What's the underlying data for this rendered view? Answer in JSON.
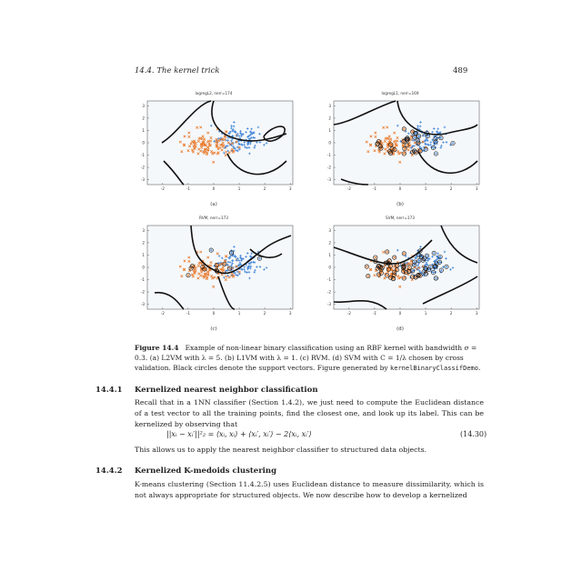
{
  "header": {
    "running_head": "14.4.  The kernel trick",
    "page_number": "489"
  },
  "figure": {
    "panels": [
      {
        "title": "logregL2, nerr=174",
        "label": "(a)"
      },
      {
        "title": "logregL1, nerr=169",
        "label": "(b)"
      },
      {
        "title": "RVM, nerr=173",
        "label": "(c)"
      },
      {
        "title": "SVM, nerr=173",
        "label": "(d)"
      }
    ],
    "x_ticks": [
      "-2",
      "-1",
      "0",
      "1",
      "2",
      "3"
    ],
    "y_ticks": [
      "3",
      "2",
      "1",
      "0",
      "-1",
      "-2",
      "-3"
    ],
    "colors": {
      "class_a": "#e8792a",
      "class_b": "#3d82d6",
      "boundary": "#111111",
      "support_vector": "#111111"
    },
    "caption_label": "Figure 14.4",
    "caption_text": "Example of non-linear binary classification using an RBF kernel with bandwidth σ = 0.3. (a) L2VM with λ = 5. (b) L1VM with λ = 1. (c) RVM. (d) SVM with C = 1/λ chosen by cross validation. Black circles denote the support vectors. Figure generated by",
    "caption_code": "kernelBinaryClassifDemo",
    "caption_end": "."
  },
  "section1": {
    "number": "14.4.1",
    "title": "Kernelized nearest neighbor classification",
    "para1": "Recall that in a 1NN classifier (Section 1.4.2), we just need to compute the Euclidean distance of a test vector to all the training points, find the closest one, and look up its label. This can be kernelized by observing that",
    "equation": "||xᵢ − xᵢ′||²₂ = ⟨xᵢ, xᵢ⟩ + ⟨xᵢ′, xᵢ′⟩ − 2⟨xᵢ, xᵢ′⟩",
    "equation_number": "(14.30)",
    "para2": "This allows us to apply the nearest neighbor classifier to structured data objects."
  },
  "section2": {
    "number": "14.4.2",
    "title": "Kernelized K-medoids clustering",
    "para1": "K-means clustering (Section 11.4.2.5) uses Euclidean distance to measure dissimilarity, which is not always appropriate for structured objects. We now describe how to develop a kernelized"
  }
}
